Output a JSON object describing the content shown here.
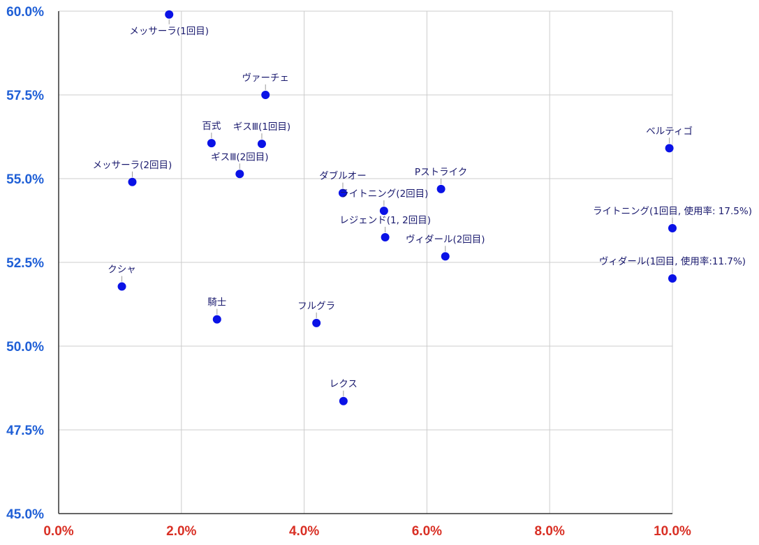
{
  "chart_data": {
    "type": "scatter",
    "title": "",
    "xlabel": "",
    "ylabel": "",
    "xlim": [
      0,
      10
    ],
    "ylim": [
      45,
      60
    ],
    "x_ticks": [
      0,
      2,
      4,
      6,
      8,
      10
    ],
    "x_tick_labels": [
      "0.0%",
      "2.0%",
      "4.0%",
      "6.0%",
      "8.0%",
      "10.0%"
    ],
    "y_ticks": [
      45,
      47.5,
      50,
      52.5,
      55,
      57.5,
      60
    ],
    "y_tick_labels": [
      "45.0%",
      "47.5%",
      "50.0%",
      "52.5%",
      "55.0%",
      "57.5%",
      "60.0%"
    ],
    "grid": true,
    "colors": {
      "point": "#0a12e6",
      "x_tick": "#d93025",
      "y_tick": "#1f5fd6",
      "grid": "#cccccc",
      "label": "#1a1a6e"
    },
    "points": [
      {
        "label": "メッサーラ(1回目)",
        "x": 1.8,
        "y": 59.9
      },
      {
        "label": "ヴァーチェ",
        "x": 3.37,
        "y": 57.5
      },
      {
        "label": "百式",
        "x": 2.49,
        "y": 56.06
      },
      {
        "label": "ギスⅢ(1回目)",
        "x": 3.31,
        "y": 56.04
      },
      {
        "label": "ギスⅢ(2回目)",
        "x": 2.95,
        "y": 55.14
      },
      {
        "label": "メッサーラ(2回目)",
        "x": 1.2,
        "y": 54.9
      },
      {
        "label": "ダブルオー",
        "x": 4.63,
        "y": 54.57
      },
      {
        "label": "Pストライク",
        "x": 6.23,
        "y": 54.69
      },
      {
        "label": "ライトニング(2回目)",
        "x": 5.3,
        "y": 54.04
      },
      {
        "label": "レジェンド(1, 2回目)",
        "x": 5.32,
        "y": 53.25
      },
      {
        "label": "ヴィダール(2回目)",
        "x": 6.3,
        "y": 52.68
      },
      {
        "label": "ベルティゴ",
        "x": 9.95,
        "y": 55.91
      },
      {
        "label": "ライトニング(1回目, 使用率: 17.5%)",
        "x": 10.0,
        "y": 53.52
      },
      {
        "label": "ヴィダール(1回目, 使用率:11.7%)",
        "x": 10.0,
        "y": 52.02
      },
      {
        "label": "クシャ",
        "x": 1.03,
        "y": 51.78
      },
      {
        "label": "騎士",
        "x": 2.58,
        "y": 50.8
      },
      {
        "label": "フルグラ",
        "x": 4.2,
        "y": 50.69
      },
      {
        "label": "レクス",
        "x": 4.64,
        "y": 48.36
      }
    ]
  }
}
